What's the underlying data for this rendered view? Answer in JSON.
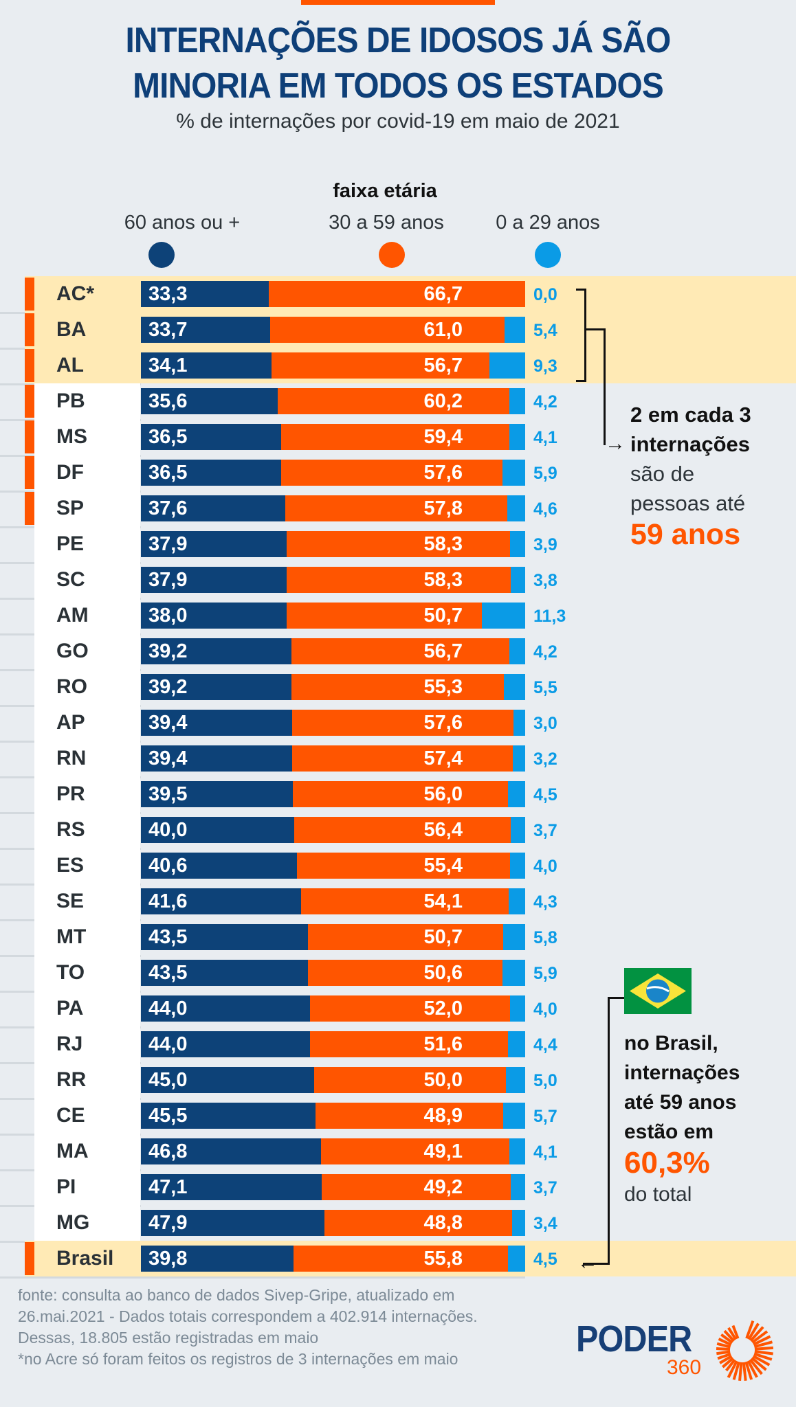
{
  "header": {
    "title_line1": "INTERNAÇÕES DE IDOSOS JÁ SÃO",
    "title_line2": "MINORIA EM TODOS OS ESTADOS",
    "subtitle": "% de internações por covid-19 em maio de 2021"
  },
  "legend": {
    "title": "faixa etária",
    "items": [
      {
        "label": "60 anos ou +",
        "color": "#0d4278"
      },
      {
        "label": "30 a 59 anos",
        "color": "#ff5500"
      },
      {
        "label": "0 a 29 anos",
        "color": "#0a9be6"
      }
    ]
  },
  "colors": {
    "accent": "#ff5500",
    "navy": "#0d4278",
    "blue": "#0a9be6",
    "highlight": "#ffeab5"
  },
  "chart_data": {
    "type": "bar",
    "orientation": "horizontal-stacked-100",
    "title": "INTERNAÇÕES DE IDOSOS JÁ SÃO MINORIA EM TODOS OS ESTADOS",
    "subtitle": "% de internações por covid-19 em maio de 2021",
    "xlabel": "",
    "ylabel": "",
    "xlim": [
      0,
      100
    ],
    "legend_title": "faixa etária",
    "legend_position": "top",
    "grid": false,
    "categories": [
      "AC*",
      "BA",
      "AL",
      "PB",
      "MS",
      "DF",
      "SP",
      "PE",
      "SC",
      "AM",
      "GO",
      "RO",
      "AP",
      "RN",
      "PR",
      "RS",
      "ES",
      "SE",
      "MT",
      "TO",
      "PA",
      "RJ",
      "RR",
      "CE",
      "MA",
      "PI",
      "MG",
      "Brasil"
    ],
    "highlighted": [
      "AC*",
      "BA",
      "AL",
      "Brasil"
    ],
    "marked": [
      "AC*",
      "BA",
      "AL",
      "PB",
      "MS",
      "DF",
      "SP",
      "Brasil"
    ],
    "series": [
      {
        "name": "60 anos ou +",
        "values": [
          33.3,
          33.7,
          34.1,
          35.6,
          36.5,
          36.5,
          37.6,
          37.9,
          37.9,
          38.0,
          39.2,
          39.2,
          39.4,
          39.4,
          39.5,
          40.0,
          40.6,
          41.6,
          43.5,
          43.5,
          44.0,
          44.0,
          45.0,
          45.5,
          46.8,
          47.1,
          47.9,
          39.8
        ],
        "labels": [
          "33,3",
          "33,7",
          "34,1",
          "35,6",
          "36,5",
          "36,5",
          "37,6",
          "37,9",
          "37,9",
          "38,0",
          "39,2",
          "39,2",
          "39,4",
          "39,4",
          "39,5",
          "40,0",
          "40,6",
          "41,6",
          "43,5",
          "43,5",
          "44,0",
          "44,0",
          "45,0",
          "45,5",
          "46,8",
          "47,1",
          "47,9",
          "39,8"
        ]
      },
      {
        "name": "30 a 59 anos",
        "values": [
          66.7,
          61.0,
          56.7,
          60.2,
          59.4,
          57.6,
          57.8,
          58.3,
          58.3,
          50.7,
          56.7,
          55.3,
          57.6,
          57.4,
          56.0,
          56.4,
          55.4,
          54.1,
          50.7,
          50.6,
          52.0,
          51.6,
          50.0,
          48.9,
          49.1,
          49.2,
          48.8,
          55.8
        ],
        "labels": [
          "66,7",
          "61,0",
          "56,7",
          "60,2",
          "59,4",
          "57,6",
          "57,8",
          "58,3",
          "58,3",
          "50,7",
          "56,7",
          "55,3",
          "57,6",
          "57,4",
          "56,0",
          "56,4",
          "55,4",
          "54,1",
          "50,7",
          "50,6",
          "52,0",
          "51,6",
          "50,0",
          "48,9",
          "49,1",
          "49,2",
          "48,8",
          "55,8"
        ]
      },
      {
        "name": "0 a 29 anos",
        "values": [
          0.0,
          5.4,
          9.3,
          4.2,
          4.1,
          5.9,
          4.6,
          3.9,
          3.8,
          11.3,
          4.2,
          5.5,
          3.0,
          3.2,
          4.5,
          3.7,
          4.0,
          4.3,
          5.8,
          5.9,
          4.0,
          4.4,
          5.0,
          5.7,
          4.1,
          3.7,
          3.4,
          4.5
        ],
        "labels": [
          "0,0",
          "5,4",
          "9,3",
          "4,2",
          "4,1",
          "5,9",
          "4,6",
          "3,9",
          "3,8",
          "11,3",
          "4,2",
          "5,5",
          "3,0",
          "3,2",
          "4,5",
          "3,7",
          "4,0",
          "4,3",
          "5,8",
          "5,9",
          "4,0",
          "4,4",
          "5,0",
          "5,7",
          "4,1",
          "3,7",
          "3,4",
          "4,5"
        ]
      }
    ],
    "annotations": [
      "2 em cada 3 internações são de pessoas até 59 anos",
      "no Brasil, internações até 59 anos estão em 60,3% do total"
    ]
  },
  "callout_top": {
    "line1": "2 em cada 3",
    "line2": "internações",
    "line3": "são de",
    "line4": "pessoas até",
    "highlight": "59 anos"
  },
  "callout_bottom": {
    "line1": "no Brasil,",
    "line2": "internações",
    "line3": "até 59 anos",
    "line4": "estão em",
    "highlight": "60,3%",
    "line5": "do total",
    "flag_icon": "brazil-flag-icon"
  },
  "footer": {
    "line1": "fonte: consulta ao banco de dados Sivep-Gripe, atualizado em",
    "line2": "26.mai.2021 - Dados totais correspondem a 402.914 internações.",
    "line3": "Dessas, 18.805 estão registradas em maio",
    "line4": "*no Acre só foram feitos os registros de 3 internações em maio"
  },
  "logo": {
    "name": "PODER",
    "number": "360"
  }
}
